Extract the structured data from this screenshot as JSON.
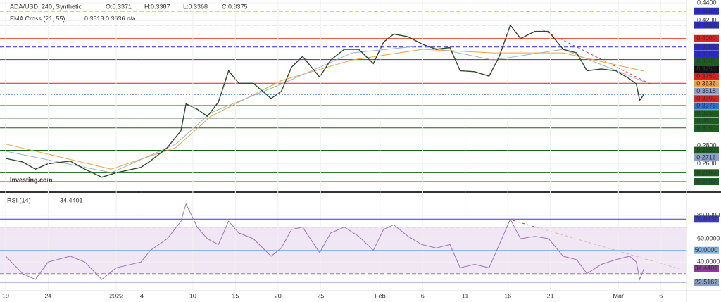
{
  "chart_data": [
    {
      "type": "line",
      "title": "ADA/USD, 240, Synthetic",
      "ohlc": [
        "O:0.3371",
        "H:0.3387",
        "L:0.3368",
        "C:0.3375"
      ],
      "indicator": "EMA Cross (21, 55)",
      "indicator_values": [
        "0.3518",
        "0.3636",
        "n/a"
      ],
      "watermark": "Investing.com",
      "xlim": [
        -0.66,
        80
      ],
      "ylim": [
        0.229,
        0.4431
      ],
      "yticks": [
        {
          "value": 0.44,
          "label": "0.4400"
        },
        {
          "value": 0.42,
          "label": "0.4200"
        },
        {
          "value": 0.28,
          "label": "0.2800"
        },
        {
          "value": 0.26,
          "label": "0.2600"
        }
      ],
      "levels": [
        {
          "value": 0.4307,
          "color": "#2a2ad4",
          "line": "dashed"
        },
        {
          "value": 0.4151,
          "color": "#2a2ad4",
          "line": "dashed"
        },
        {
          "value": 0.4,
          "label": "0.4000",
          "color": "#e02020",
          "line": "solid"
        },
        {
          "value": 0.3906,
          "color": "#2a2ad4",
          "line": "dashed"
        },
        {
          "value": 0.3906,
          "color": "#2a2ad4",
          "line": "none"
        },
        {
          "value": 0.3765,
          "color": "#1b5e20",
          "line": "solid"
        },
        {
          "value": 0.375,
          "label": "0.3750",
          "color": "#111111",
          "line": "none"
        },
        {
          "value": 0.375,
          "label": "0.3750",
          "color": "#e02020",
          "line": "solid"
        },
        {
          "value": 0.3636,
          "color": "#f0a040",
          "line": "none"
        },
        {
          "value": 0.3518,
          "color": "#8aa0c8",
          "line": "none"
        },
        {
          "value": 0.35,
          "label": "0.3500",
          "color": "#e02020",
          "line": "solid"
        },
        {
          "value": 0.3375,
          "color": "#2f6fd6",
          "line": "dotted"
        },
        {
          "value": 0.325,
          "label": "0.3250",
          "color": "#1b5e20",
          "line": "solid"
        },
        {
          "value": 0.311,
          "label": "0.3110",
          "color": "#1b5e20",
          "line": "solid"
        },
        {
          "value": 0.3,
          "label": "0.3000",
          "color": "#1b5e20",
          "line": "solid"
        },
        {
          "value": 0.275,
          "label": "0.2750",
          "color": "#1b5e20",
          "line": "solid"
        },
        {
          "value": 0.2716,
          "color": "#8aa0c8",
          "line": "none"
        },
        {
          "value": 0.25,
          "label": "0.2500",
          "color": "#1b5e20",
          "line": "solid"
        },
        {
          "value": 0.24,
          "label": "0.2400",
          "color": "#1b5e20",
          "line": "solid"
        }
      ],
      "series": [
        {
          "color": "#f0a040",
          "x": [
            0,
            12.4,
            20,
            24.1,
            32.4,
            40.7,
            49,
            57.3,
            65.5,
            75
          ],
          "values": [
            0.282,
            0.254,
            0.278,
            0.313,
            0.353,
            0.376,
            0.388,
            0.384,
            0.384,
            0.3636
          ]
        },
        {
          "color": "#9fb0d0",
          "x": [
            0,
            12.4,
            20,
            24.1,
            32.4,
            40.7,
            49,
            57.3,
            65.5,
            75
          ],
          "values": [
            0.274,
            0.25,
            0.282,
            0.317,
            0.349,
            0.384,
            0.392,
            0.376,
            0.388,
            0.3518
          ]
        },
        {
          "color": "#2e4a2e",
          "x": [
            0,
            2,
            3.5,
            5,
            7.6,
            9.3,
            11.3,
            13,
            15.9,
            17,
            19,
            20.6,
            21.2,
            22.5,
            23.7,
            25,
            26.2,
            27.4,
            29.1,
            31.2,
            32.4,
            33.6,
            34.9,
            36.9,
            38.2,
            39.8,
            41.5,
            43.2,
            44.4,
            45.6,
            47.3,
            48.9,
            50.6,
            52.2,
            53.4,
            55.1,
            56.8,
            58,
            59.3,
            60.5,
            62.2,
            63.8,
            65.5,
            67.1,
            68.3,
            70,
            71.7,
            73.3,
            74.1,
            74.5,
            75
          ],
          "values": [
            0.266,
            0.262,
            0.254,
            0.26,
            0.263,
            0.254,
            0.245,
            0.25,
            0.256,
            0.263,
            0.278,
            0.297,
            0.327,
            0.321,
            0.313,
            0.329,
            0.364,
            0.35,
            0.35,
            0.333,
            0.341,
            0.368,
            0.38,
            0.357,
            0.376,
            0.388,
            0.388,
            0.372,
            0.396,
            0.405,
            0.402,
            0.394,
            0.388,
            0.39,
            0.364,
            0.363,
            0.358,
            0.38,
            0.415,
            0.4,
            0.408,
            0.408,
            0.388,
            0.384,
            0.364,
            0.366,
            0.364,
            0.355,
            0.349,
            0.331,
            0.3375
          ]
        }
      ]
    },
    {
      "type": "line",
      "title": "RSI (14)",
      "current": "34.4401",
      "xlim": [
        -0.66,
        80
      ],
      "ylim": [
        15.9,
        98.2
      ],
      "band": [
        30,
        70
      ],
      "band_color": "#eadcf0",
      "yticks": [
        {
          "value": 80,
          "label": "80.0000"
        },
        {
          "value": 60,
          "label": "60.0000"
        },
        {
          "value": 40,
          "label": "40.0000"
        }
      ],
      "levels": [
        {
          "value": 76.8437,
          "color": "#3a3ad0",
          "line": "solid"
        },
        {
          "value": 70,
          "line": "dashed",
          "color": "#888888"
        },
        {
          "value": 50,
          "label": "50.0000",
          "color": "#7fb0e0",
          "line": "solid"
        },
        {
          "value": 34.4401,
          "color": "#8e3a9e",
          "line": "none"
        },
        {
          "value": 30,
          "line": "dashed",
          "color": "#888888"
        },
        {
          "value": 22.5162,
          "color": "#8aa0c8",
          "line": "solid"
        }
      ],
      "xticks": [
        {
          "value": 0,
          "label": "19"
        },
        {
          "value": 5,
          "label": "24"
        },
        {
          "value": 13,
          "label": "2022"
        },
        {
          "value": 16,
          "label": "4"
        },
        {
          "value": 22,
          "label": "10"
        },
        {
          "value": 27,
          "label": "15"
        },
        {
          "value": 32,
          "label": "20"
        },
        {
          "value": 37,
          "label": "25"
        },
        {
          "value": 44,
          "label": "Feb"
        },
        {
          "value": 49,
          "label": "6"
        },
        {
          "value": 54,
          "label": "11"
        },
        {
          "value": 59,
          "label": "16"
        },
        {
          "value": 64,
          "label": "21"
        },
        {
          "value": 72,
          "label": "Mar"
        },
        {
          "value": 77,
          "label": "6"
        }
      ],
      "series": [
        {
          "color": "#a070c0",
          "x": [
            0,
            2,
            3.5,
            5,
            7.6,
            9.3,
            11.3,
            13,
            15.9,
            17,
            19,
            20.6,
            21.2,
            22.5,
            23.7,
            25,
            26.2,
            27.4,
            29.1,
            31.2,
            32.4,
            33.6,
            34.9,
            36.9,
            38.2,
            39.8,
            41.5,
            43.2,
            44.4,
            45.6,
            47.3,
            48.9,
            50.6,
            52.2,
            53.4,
            55.1,
            56.8,
            58,
            59.3,
            60.5,
            62.2,
            63.8,
            65.5,
            67.1,
            68.3,
            70,
            71.7,
            73.3,
            74.1,
            74.5,
            75
          ],
          "values": [
            45,
            30,
            25,
            40,
            45,
            40,
            25,
            35,
            40,
            50,
            60,
            75,
            90,
            70,
            60,
            55,
            75,
            65,
            60,
            45,
            52,
            68,
            70,
            48,
            65,
            70,
            62,
            50,
            68,
            72,
            62,
            55,
            52,
            55,
            35,
            38,
            35,
            55,
            76.8,
            60,
            62,
            60,
            45,
            42,
            30,
            38,
            42,
            45,
            40,
            25,
            34.4401
          ]
        }
      ]
    }
  ]
}
